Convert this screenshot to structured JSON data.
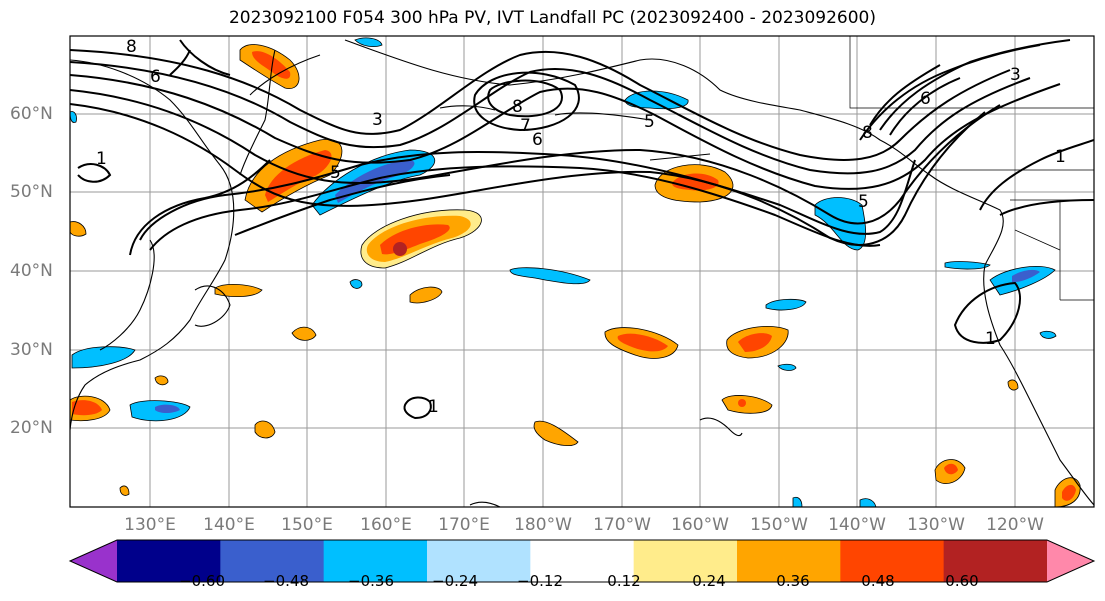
{
  "title": "2023092100 F054 300 hPa PV, IVT Landfall PC (2023092400 - 2023092600)",
  "lat_labels": [
    "60°N",
    "50°N",
    "40°N",
    "30°N",
    "20°N"
  ],
  "lon_labels": [
    "130°E",
    "140°E",
    "150°E",
    "160°E",
    "170°E",
    "180°W",
    "170°W",
    "160°W",
    "150°W",
    "140°W",
    "130°W",
    "120°W"
  ],
  "contour_labels": [
    "8",
    "7",
    "6",
    "5",
    "3",
    "1"
  ],
  "colorbar": {
    "ticks": [
      "−0.60",
      "−0.48",
      "−0.36",
      "−0.24",
      "−0.12",
      "0.12",
      "0.24",
      "0.36",
      "0.48",
      "0.60"
    ],
    "colors": [
      "#9932cc",
      "#00008b",
      "#3a5fcd",
      "#00bfff",
      "#b0e2ff",
      "#ffffff",
      "#ffec8b",
      "#ffa500",
      "#ff4500",
      "#b22222",
      "#ff88aa"
    ]
  }
}
